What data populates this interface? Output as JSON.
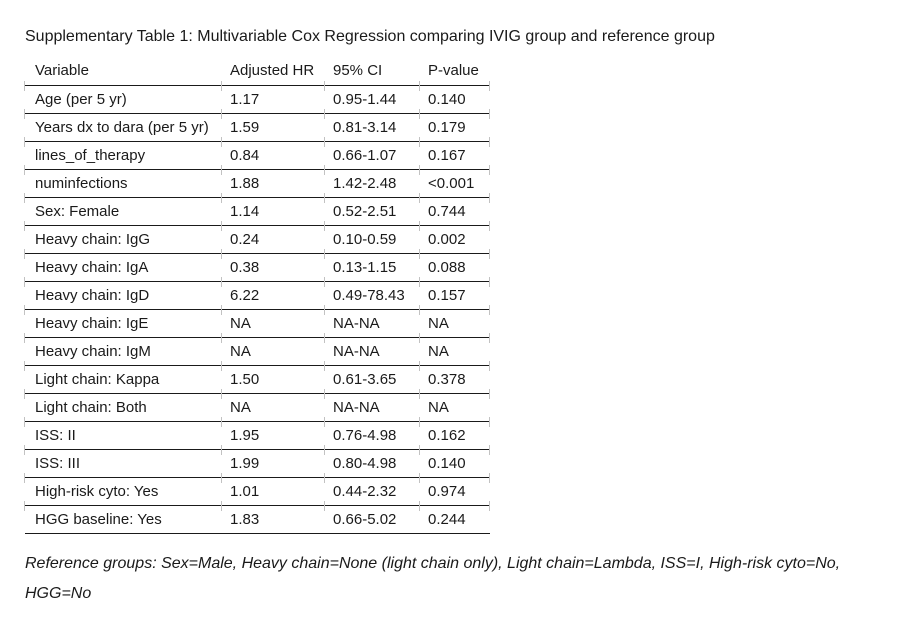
{
  "title": "Supplementary Table 1: Multivariable Cox Regression comparing IVIG group and reference group",
  "table": {
    "columns": [
      "Variable",
      "Adjusted HR",
      "95% CI",
      "P-value"
    ],
    "rows": [
      [
        "Age (per 5 yr)",
        "1.17",
        "0.95-1.44",
        "0.140"
      ],
      [
        "Years dx to dara (per 5 yr)",
        "1.59",
        "0.81-3.14",
        "0.179"
      ],
      [
        "lines_of_therapy",
        "0.84",
        "0.66-1.07",
        "0.167"
      ],
      [
        "numinfections",
        "1.88",
        "1.42-2.48",
        "<0.001"
      ],
      [
        "Sex: Female",
        "1.14",
        "0.52-2.51",
        "0.744"
      ],
      [
        "Heavy chain: IgG",
        "0.24",
        "0.10-0.59",
        "0.002"
      ],
      [
        "Heavy chain: IgA",
        "0.38",
        "0.13-1.15",
        "0.088"
      ],
      [
        "Heavy chain: IgD",
        "6.22",
        "0.49-78.43",
        "0.157"
      ],
      [
        "Heavy chain: IgE",
        "NA",
        "NA-NA",
        "NA"
      ],
      [
        "Heavy chain: IgM",
        "NA",
        "NA-NA",
        "NA"
      ],
      [
        "Light chain: Kappa",
        "1.50",
        "0.61-3.65",
        "0.378"
      ],
      [
        "Light chain: Both",
        "NA",
        "NA-NA",
        "NA"
      ],
      [
        "ISS: II",
        "1.95",
        "0.76-4.98",
        "0.162"
      ],
      [
        "ISS: III",
        "1.99",
        "0.80-4.98",
        "0.140"
      ],
      [
        "High-risk cyto: Yes",
        "1.01",
        "0.44-2.32",
        "0.974"
      ],
      [
        "HGG baseline: Yes",
        "1.83",
        "0.66-5.02",
        "0.244"
      ]
    ]
  },
  "footnote": "Reference groups: Sex=Male, Heavy chain=None (light chain only), Light chain=Lambda, ISS=I, High-risk cyto=No, HGG=No",
  "colors": {
    "text": "#1a1a1a",
    "rule": "#1a1a1a",
    "background": "#ffffff"
  }
}
